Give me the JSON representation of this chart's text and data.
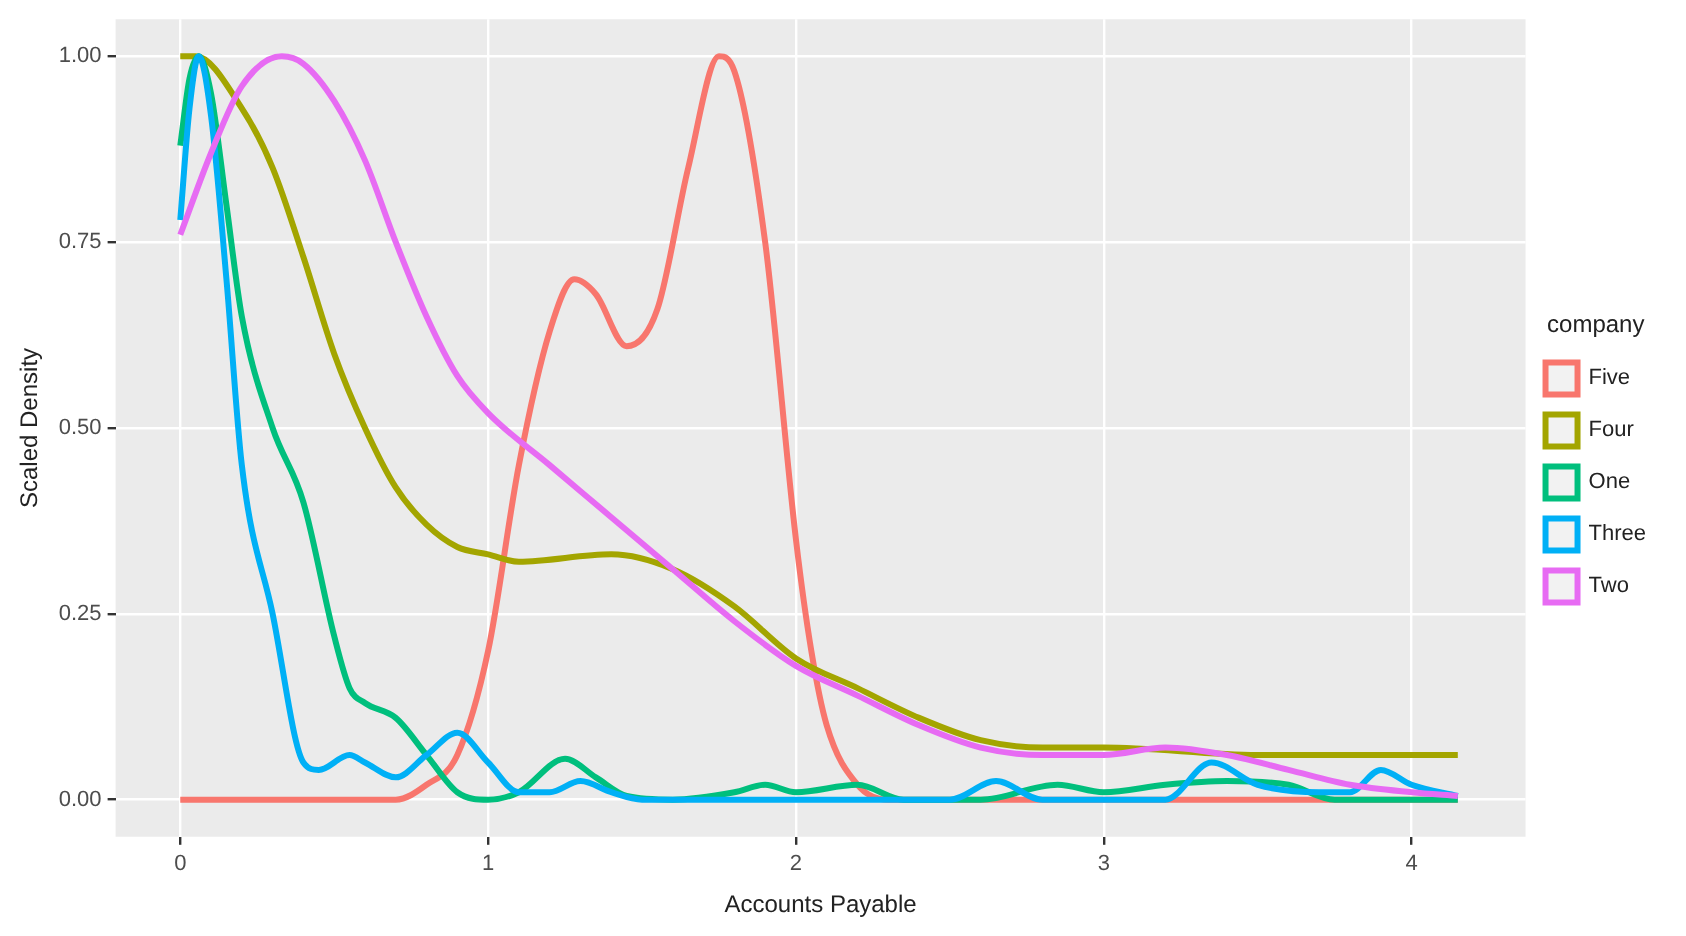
{
  "chart_data": {
    "type": "line",
    "xlabel": "Accounts Payable",
    "ylabel": "Scaled Density",
    "legend_title": "company",
    "legend": "right",
    "grid": true,
    "marker": "none",
    "line_style": "solid",
    "xlim": [
      -0.21,
      4.37
    ],
    "ylim": [
      -0.05,
      1.05
    ],
    "xticks": [
      0,
      1,
      2,
      3,
      4
    ],
    "yticks": [
      {
        "value": 0,
        "label": "0.00"
      },
      {
        "value": 0.25,
        "label": "0.25"
      },
      {
        "value": 0.5,
        "label": "0.50"
      },
      {
        "value": 0.75,
        "label": "0.75"
      },
      {
        "value": 1,
        "label": "1.00"
      }
    ],
    "series": [
      {
        "name": "Five",
        "color": "#f8766d",
        "x": [
          0,
          0.7,
          0.8,
          0.9,
          1.0,
          1.1,
          1.2,
          1.28,
          1.35,
          1.45,
          1.55,
          1.65,
          1.75,
          1.8,
          1.9,
          2.0,
          2.05,
          2.1,
          2.2,
          2.3,
          4.15
        ],
        "values": [
          0,
          0,
          0.02,
          0.06,
          0.2,
          0.45,
          0.63,
          0.7,
          0.68,
          0.61,
          0.66,
          0.85,
          1.0,
          0.98,
          0.75,
          0.35,
          0.2,
          0.1,
          0.02,
          0,
          0
        ]
      },
      {
        "name": "Four",
        "color": "#a3a500",
        "x": [
          0,
          0.05,
          0.2,
          0.3,
          0.4,
          0.5,
          0.6,
          0.7,
          0.8,
          0.9,
          1.0,
          1.1,
          1.4,
          1.6,
          1.8,
          2.0,
          2.2,
          2.4,
          2.6,
          2.8,
          3.0,
          3.5,
          4.0,
          4.15
        ],
        "values": [
          1.0,
          1.0,
          0.93,
          0.85,
          0.73,
          0.6,
          0.5,
          0.42,
          0.37,
          0.34,
          0.33,
          0.32,
          0.33,
          0.31,
          0.26,
          0.19,
          0.15,
          0.11,
          0.08,
          0.07,
          0.07,
          0.06,
          0.06,
          0.06
        ]
      },
      {
        "name": "One",
        "color": "#00bf7d",
        "x": [
          0,
          0.03,
          0.06,
          0.1,
          0.15,
          0.2,
          0.3,
          0.4,
          0.5,
          0.55,
          0.6,
          0.7,
          0.8,
          0.9,
          1.0,
          1.1,
          1.25,
          1.35,
          1.45,
          1.6,
          1.8,
          1.9,
          2.0,
          2.2,
          2.35,
          2.6,
          2.85,
          3.0,
          3.2,
          3.4,
          3.6,
          3.75,
          4.15
        ],
        "values": [
          0.88,
          0.97,
          1.0,
          0.95,
          0.8,
          0.65,
          0.5,
          0.4,
          0.22,
          0.15,
          0.13,
          0.11,
          0.06,
          0.01,
          0,
          0.01,
          0.055,
          0.03,
          0.005,
          0,
          0.01,
          0.02,
          0.01,
          0.02,
          0,
          0,
          0.02,
          0.01,
          0.02,
          0.025,
          0.02,
          0,
          0
        ]
      },
      {
        "name": "Three",
        "color": "#00b0f6",
        "x": [
          0,
          0.03,
          0.06,
          0.1,
          0.15,
          0.2,
          0.3,
          0.4,
          0.45,
          0.55,
          0.6,
          0.7,
          0.8,
          0.9,
          1.0,
          1.1,
          1.2,
          1.3,
          1.4,
          1.5,
          2.5,
          2.65,
          2.8,
          3.2,
          3.35,
          3.5,
          3.7,
          3.8,
          3.9,
          4.0,
          4.15
        ],
        "values": [
          0.78,
          0.93,
          1.0,
          0.92,
          0.7,
          0.45,
          0.25,
          0.05,
          0.04,
          0.06,
          0.05,
          0.03,
          0.06,
          0.09,
          0.05,
          0.01,
          0.01,
          0.025,
          0.01,
          0,
          0,
          0.025,
          0,
          0,
          0.05,
          0.02,
          0.01,
          0.01,
          0.04,
          0.02,
          0.005
        ]
      },
      {
        "name": "Two",
        "color": "#e76bf3",
        "x": [
          0,
          0.1,
          0.2,
          0.33,
          0.4,
          0.5,
          0.6,
          0.7,
          0.8,
          0.9,
          1.0,
          1.2,
          1.4,
          1.6,
          1.8,
          2.0,
          2.2,
          2.4,
          2.6,
          2.8,
          3.0,
          3.2,
          3.4,
          3.6,
          3.8,
          4.0,
          4.15
        ],
        "values": [
          0.76,
          0.87,
          0.96,
          1.0,
          0.99,
          0.94,
          0.86,
          0.75,
          0.65,
          0.57,
          0.52,
          0.45,
          0.38,
          0.31,
          0.24,
          0.18,
          0.14,
          0.1,
          0.07,
          0.06,
          0.06,
          0.07,
          0.06,
          0.04,
          0.02,
          0.01,
          0.005
        ]
      }
    ]
  }
}
